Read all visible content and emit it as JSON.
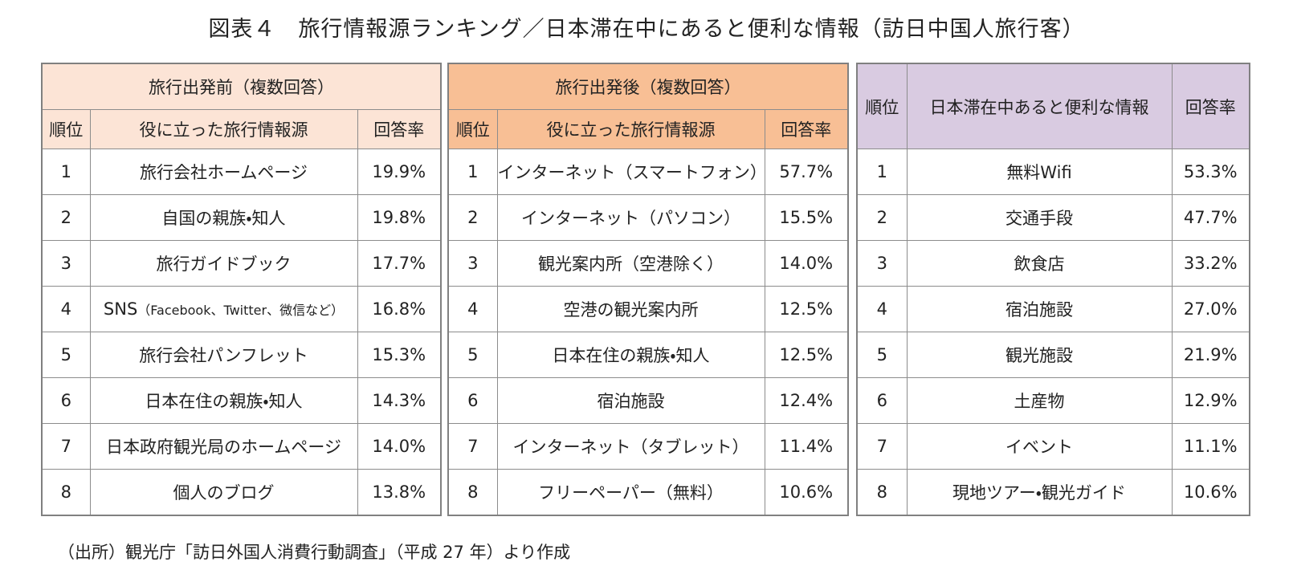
{
  "title": "図表４　旅行情報源ランキング／日本滞在中にあると便利な情報（訪日中国人旅行客）",
  "tables": [
    {
      "group_header": "旅行出発前（複数回答）",
      "columns": [
        "順位",
        "役に立った旅行情報源",
        "回答率"
      ],
      "rows": [
        [
          "1",
          "旅行会社ホームページ",
          "19.9%"
        ],
        [
          "2",
          "自国の親族・知人",
          "19.8%"
        ],
        [
          "3",
          "旅行ガイドブック",
          "17.7%"
        ],
        [
          "4",
          {
            "main": "SNS",
            "detail": "（Facebook、Twitter、微信など）"
          },
          "16.8%"
        ],
        [
          "5",
          "旅行会社パンフレット",
          "15.3%"
        ],
        [
          "6",
          "日本在住の親族・知人",
          "14.3%"
        ],
        [
          "7",
          "日本政府観光局のホームページ",
          "14.0%"
        ],
        [
          "8",
          "個人のブログ",
          "13.8%"
        ]
      ]
    },
    {
      "group_header": "旅行出発後（複数回答）",
      "columns": [
        "順位",
        "役に立った旅行情報源",
        "回答率"
      ],
      "rows": [
        [
          "1",
          "インターネット（スマートフォン）",
          "57.7%"
        ],
        [
          "2",
          "インターネット（パソコン）",
          "15.5%"
        ],
        [
          "3",
          "観光案内所（空港除く）",
          "14.0%"
        ],
        [
          "4",
          "空港の観光案内所",
          "12.5%"
        ],
        [
          "5",
          "日本在住の親族・知人",
          "12.5%"
        ],
        [
          "6",
          "宿泊施設",
          "12.4%"
        ],
        [
          "7",
          "インターネット（タブレット）",
          "11.4%"
        ],
        [
          "8",
          "フリーペーパー（無料）",
          "10.6%"
        ]
      ]
    },
    {
      "columns": [
        "順位",
        "日本滞在中あると便利な情報",
        "回答率"
      ],
      "rows": [
        [
          "1",
          "無料Wifi",
          "53.3%"
        ],
        [
          "2",
          "交通手段",
          "47.7%"
        ],
        [
          "3",
          "飲食店",
          "33.2%"
        ],
        [
          "4",
          "宿泊施設",
          "27.0%"
        ],
        [
          "5",
          "観光施設",
          "21.9%"
        ],
        [
          "6",
          "土産物",
          "12.9%"
        ],
        [
          "7",
          "イベント",
          "11.1%"
        ],
        [
          "8",
          "現地ツアー・観光ガイド",
          "10.6%"
        ]
      ]
    }
  ],
  "note": "（出所）観光庁「訪日外国人消費行動調査」（平成 27 年）より作成"
}
